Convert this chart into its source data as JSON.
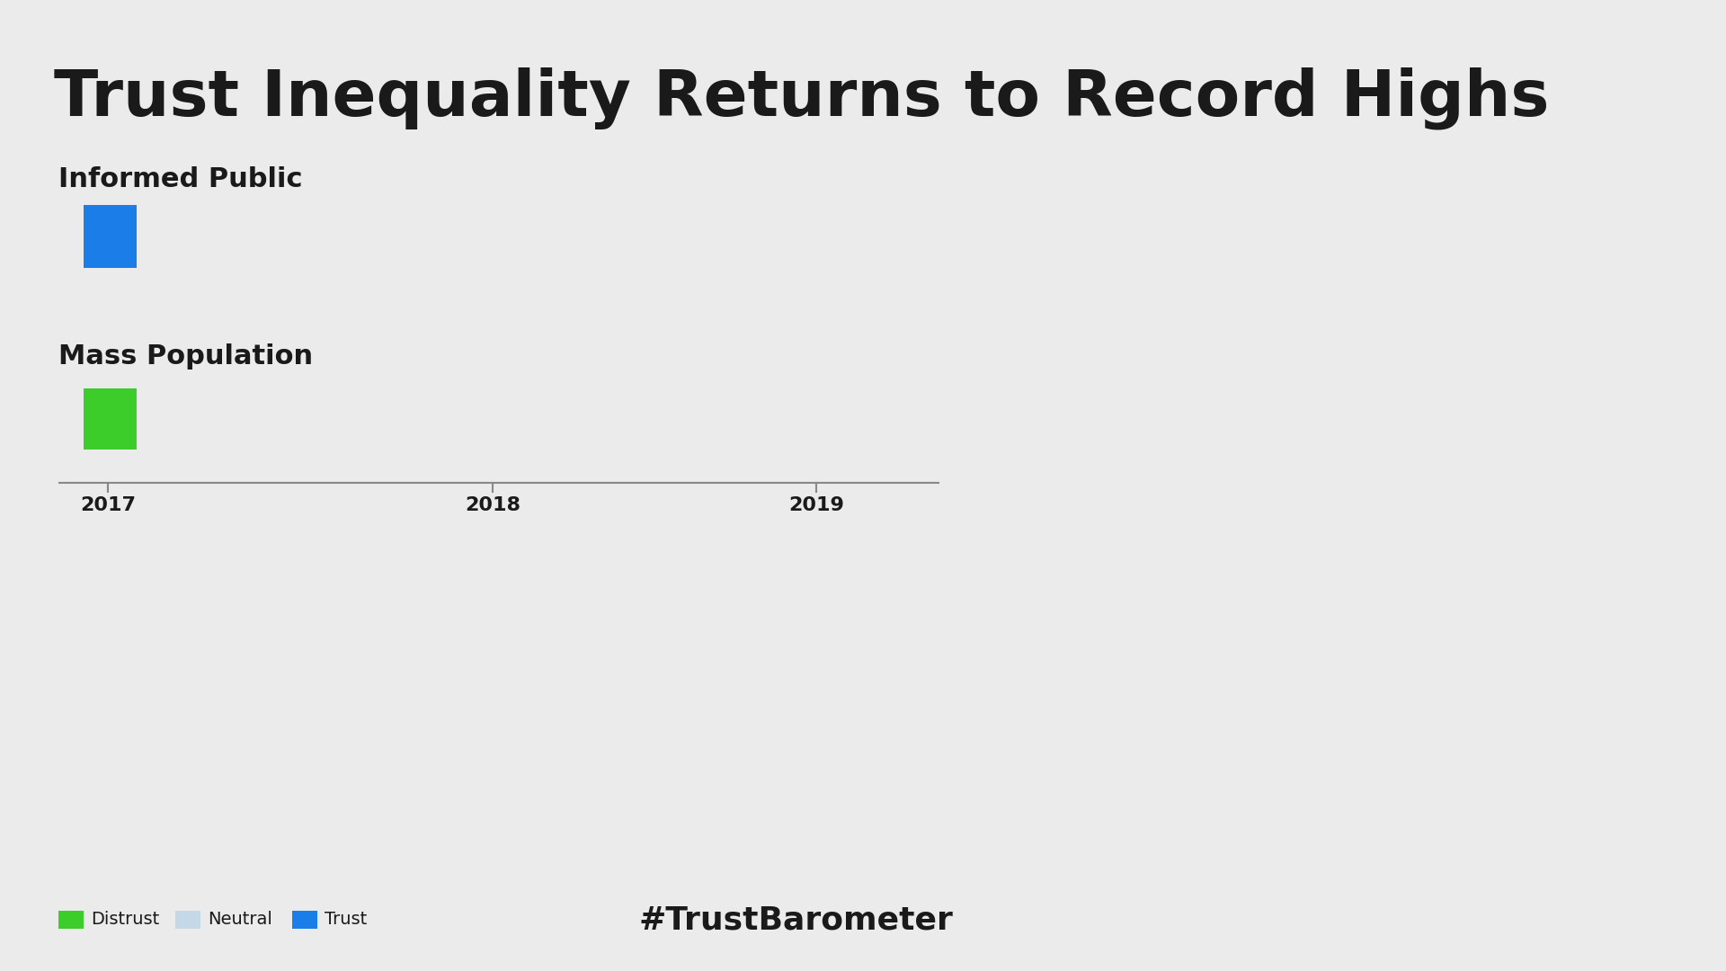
{
  "title": "Trust Inequality Returns to Record Highs",
  "bg_color": "#EBEBEB",
  "title_color": "#1a1a1a",
  "title_fontsize": 52,
  "title_fontweight": "bold",
  "section1_label": "Informed Public",
  "section2_label": "Mass Population",
  "section_label_fontsize": 22,
  "section_label_fontweight": "bold",
  "section_label_color": "#1a1a1a",
  "timeline_years": [
    "2017",
    "2018",
    "2019"
  ],
  "timeline_color": "#888888",
  "timeline_fontsize": 16,
  "bar_blue_color": "#1a7de8",
  "bar_green_color": "#3dcd2a",
  "bar_neutral_color": "#c5d8e8",
  "legend_items": [
    "Distrust",
    "Neutral",
    "Trust"
  ],
  "legend_colors": [
    "#3dcd2a",
    "#c5d8e8",
    "#1a7de8"
  ],
  "legend_fontsize": 14,
  "hashtag_text": "#TrustBarometer",
  "hashtag_fontsize": 26,
  "hashtag_color": "#1a1a1a",
  "hashtag_fontweight": "bold"
}
